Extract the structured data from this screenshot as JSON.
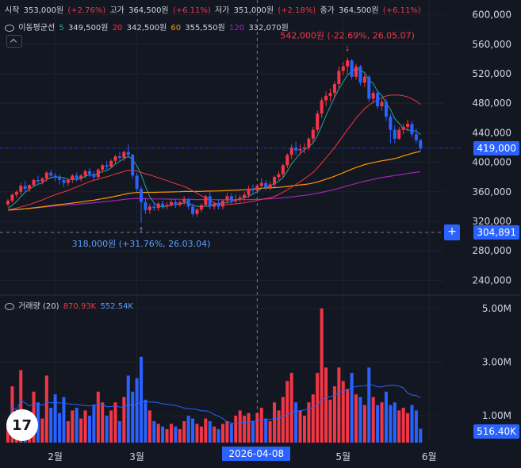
{
  "header": {
    "open_label": "시작",
    "open_value": "353,000원",
    "open_change": "(+2.76%)",
    "high_label": "고가",
    "high_value": "364,500원",
    "high_change": "(+6.11%)",
    "low_label": "저가",
    "low_value": "351,000원",
    "low_change": "(+2.18%)",
    "close_label": "종가",
    "close_value": "364,500원",
    "close_change": "(+6.11%)"
  },
  "ma_legend": {
    "title": "이동평균선",
    "p5": "5",
    "v5": "349,500원",
    "p20": "20",
    "v20": "342,500원",
    "p60": "60",
    "v60": "355,550원",
    "p120": "120",
    "v120": "332,070원"
  },
  "volume_legend": {
    "title": "거래량 (20)",
    "v1": "870.93K",
    "v2": "552.54K"
  },
  "annotations": {
    "high": "542,000원 (-22.69%, 26.05.07)",
    "low": "318,000원 (+31.76%, 26.03.04)"
  },
  "price_axis": {
    "ticks": [
      "600,000",
      "560,000",
      "520,000",
      "480,000",
      "440,000",
      "400,000",
      "360,000",
      "320,000",
      "280,000",
      "240,000"
    ],
    "current_price": "419,000",
    "crosshair_price": "304,891"
  },
  "volume_axis": {
    "ticks": [
      "5.00M",
      "3.00M",
      "1.00M"
    ],
    "current_volume": "516.40K"
  },
  "time_axis": {
    "ticks": [
      "2월",
      "3월",
      "5월",
      "6월"
    ],
    "crosshair_date": "2026-04-08"
  },
  "logo_text": "17",
  "colors": {
    "up": "#f23645",
    "down": "#2962ff",
    "ma5": "#26a69a",
    "ma20": "#f23645",
    "ma60": "#ff9800",
    "ma120": "#9c27b0",
    "vol_ma": "#2962ff",
    "background": "#131722"
  },
  "chart_data": {
    "type": "candlestick",
    "price_range": [
      220000,
      620000
    ],
    "volume_range": [
      0,
      5500000
    ],
    "candles": [
      {
        "o": 343000,
        "h": 350000,
        "c": 348000,
        "l": 340000,
        "v": 600000
      },
      {
        "o": 348000,
        "h": 358000,
        "c": 356000,
        "l": 345000,
        "v": 2100000
      },
      {
        "o": 356000,
        "h": 362000,
        "c": 360000,
        "l": 352000,
        "v": 900000
      },
      {
        "o": 360000,
        "h": 372000,
        "c": 368000,
        "l": 356000,
        "v": 2700000
      },
      {
        "o": 368000,
        "h": 375000,
        "c": 364000,
        "l": 360000,
        "v": 1100000
      },
      {
        "o": 364000,
        "h": 370000,
        "c": 369000,
        "l": 360000,
        "v": 800000
      },
      {
        "o": 369000,
        "h": 378000,
        "c": 376000,
        "l": 366000,
        "v": 1900000
      },
      {
        "o": 376000,
        "h": 382000,
        "c": 374000,
        "l": 370000,
        "v": 1500000
      },
      {
        "o": 374000,
        "h": 380000,
        "c": 378000,
        "l": 370000,
        "v": 900000
      },
      {
        "o": 378000,
        "h": 388000,
        "c": 386000,
        "l": 374000,
        "v": 2500000
      },
      {
        "o": 386000,
        "h": 390000,
        "c": 382000,
        "l": 378000,
        "v": 1300000
      },
      {
        "o": 382000,
        "h": 386000,
        "c": 379000,
        "l": 374000,
        "v": 1800000
      },
      {
        "o": 379000,
        "h": 384000,
        "c": 376000,
        "l": 370000,
        "v": 1100000
      },
      {
        "o": 376000,
        "h": 380000,
        "c": 372000,
        "l": 366000,
        "v": 1700000
      },
      {
        "o": 372000,
        "h": 378000,
        "c": 376000,
        "l": 368000,
        "v": 800000
      },
      {
        "o": 376000,
        "h": 384000,
        "c": 382000,
        "l": 372000,
        "v": 1200000
      },
      {
        "o": 382000,
        "h": 386000,
        "c": 378000,
        "l": 374000,
        "v": 1300000
      },
      {
        "o": 378000,
        "h": 384000,
        "c": 382000,
        "l": 374000,
        "v": 900000
      },
      {
        "o": 382000,
        "h": 390000,
        "c": 388000,
        "l": 378000,
        "v": 1200000
      },
      {
        "o": 388000,
        "h": 392000,
        "c": 384000,
        "l": 380000,
        "v": 1000000
      },
      {
        "o": 384000,
        "h": 388000,
        "c": 380000,
        "l": 376000,
        "v": 1400000
      },
      {
        "o": 380000,
        "h": 392000,
        "c": 390000,
        "l": 376000,
        "v": 1900000
      },
      {
        "o": 390000,
        "h": 398000,
        "c": 396000,
        "l": 386000,
        "v": 1500000
      },
      {
        "o": 396000,
        "h": 402000,
        "c": 394000,
        "l": 390000,
        "v": 1000000
      },
      {
        "o": 394000,
        "h": 404000,
        "c": 402000,
        "l": 392000,
        "v": 1200000
      },
      {
        "o": 402000,
        "h": 410000,
        "c": 408000,
        "l": 398000,
        "v": 1500000
      },
      {
        "o": 408000,
        "h": 414000,
        "c": 406000,
        "l": 402000,
        "v": 800000
      },
      {
        "o": 406000,
        "h": 416000,
        "c": 414000,
        "l": 402000,
        "v": 1700000
      },
      {
        "o": 414000,
        "h": 424000,
        "c": 410000,
        "l": 406000,
        "v": 2500000
      },
      {
        "o": 410000,
        "h": 412000,
        "c": 382000,
        "l": 378000,
        "v": 1900000
      },
      {
        "o": 382000,
        "h": 386000,
        "c": 364000,
        "l": 360000,
        "v": 2400000
      },
      {
        "o": 364000,
        "h": 368000,
        "c": 346000,
        "l": 318000,
        "v": 3200000
      },
      {
        "o": 346000,
        "h": 352000,
        "c": 335000,
        "l": 330000,
        "v": 1600000
      },
      {
        "o": 335000,
        "h": 344000,
        "c": 340000,
        "l": 330000,
        "v": 1200000
      },
      {
        "o": 340000,
        "h": 346000,
        "c": 338000,
        "l": 334000,
        "v": 800000
      },
      {
        "o": 338000,
        "h": 346000,
        "c": 344000,
        "l": 334000,
        "v": 700000
      },
      {
        "o": 344000,
        "h": 348000,
        "c": 340000,
        "l": 336000,
        "v": 600000
      },
      {
        "o": 340000,
        "h": 346000,
        "c": 342000,
        "l": 336000,
        "v": 500000
      },
      {
        "o": 342000,
        "h": 350000,
        "c": 346000,
        "l": 340000,
        "v": 700000
      },
      {
        "o": 346000,
        "h": 350000,
        "c": 342000,
        "l": 338000,
        "v": 600000
      },
      {
        "o": 342000,
        "h": 348000,
        "c": 346000,
        "l": 340000,
        "v": 500000
      },
      {
        "o": 346000,
        "h": 354000,
        "c": 350000,
        "l": 342000,
        "v": 800000
      },
      {
        "o": 350000,
        "h": 352000,
        "c": 340000,
        "l": 336000,
        "v": 1000000
      },
      {
        "o": 340000,
        "h": 344000,
        "c": 330000,
        "l": 326000,
        "v": 900000
      },
      {
        "o": 330000,
        "h": 338000,
        "c": 336000,
        "l": 326000,
        "v": 700000
      },
      {
        "o": 336000,
        "h": 344000,
        "c": 342000,
        "l": 332000,
        "v": 600000
      },
      {
        "o": 342000,
        "h": 356000,
        "c": 354000,
        "l": 340000,
        "v": 900000
      },
      {
        "o": 354000,
        "h": 360000,
        "c": 340000,
        "l": 336000,
        "v": 800000
      },
      {
        "o": 340000,
        "h": 346000,
        "c": 344000,
        "l": 336000,
        "v": 600000
      },
      {
        "o": 344000,
        "h": 350000,
        "c": 340000,
        "l": 336000,
        "v": 500000
      },
      {
        "o": 340000,
        "h": 350000,
        "c": 348000,
        "l": 336000,
        "v": 700000
      },
      {
        "o": 348000,
        "h": 358000,
        "c": 354000,
        "l": 344000,
        "v": 800000
      },
      {
        "o": 354000,
        "h": 358000,
        "c": 348000,
        "l": 342000,
        "v": 700000
      },
      {
        "o": 348000,
        "h": 356000,
        "c": 350000,
        "l": 344000,
        "v": 1000000
      },
      {
        "o": 350000,
        "h": 356000,
        "c": 352000,
        "l": 346000,
        "v": 1200000
      },
      {
        "o": 352000,
        "h": 360000,
        "c": 356000,
        "l": 348000,
        "v": 1000000
      },
      {
        "o": 356000,
        "h": 368000,
        "c": 364000,
        "l": 352000,
        "v": 1100000
      },
      {
        "o": 364000,
        "h": 370000,
        "c": 362000,
        "l": 356000,
        "v": 800000
      },
      {
        "o": 362000,
        "h": 370000,
        "c": 368000,
        "l": 358000,
        "v": 1100000
      },
      {
        "o": 368000,
        "h": 378000,
        "c": 372000,
        "l": 364000,
        "v": 1300000
      },
      {
        "o": 372000,
        "h": 376000,
        "c": 366000,
        "l": 362000,
        "v": 900000
      },
      {
        "o": 366000,
        "h": 374000,
        "c": 370000,
        "l": 362000,
        "v": 800000
      },
      {
        "o": 370000,
        "h": 382000,
        "c": 380000,
        "l": 366000,
        "v": 1500000
      },
      {
        "o": 380000,
        "h": 388000,
        "c": 384000,
        "l": 376000,
        "v": 1200000
      },
      {
        "o": 384000,
        "h": 398000,
        "c": 396000,
        "l": 380000,
        "v": 1700000
      },
      {
        "o": 396000,
        "h": 412000,
        "c": 410000,
        "l": 392000,
        "v": 2300000
      },
      {
        "o": 410000,
        "h": 424000,
        "c": 420000,
        "l": 404000,
        "v": 2600000
      },
      {
        "o": 420000,
        "h": 428000,
        "c": 416000,
        "l": 410000,
        "v": 1500000
      },
      {
        "o": 416000,
        "h": 424000,
        "c": 418000,
        "l": 410000,
        "v": 1200000
      },
      {
        "o": 418000,
        "h": 426000,
        "c": 420000,
        "l": 412000,
        "v": 1000000
      },
      {
        "o": 420000,
        "h": 434000,
        "c": 432000,
        "l": 416000,
        "v": 1500000
      },
      {
        "o": 432000,
        "h": 448000,
        "c": 444000,
        "l": 426000,
        "v": 1800000
      },
      {
        "o": 444000,
        "h": 470000,
        "c": 466000,
        "l": 440000,
        "v": 2600000
      },
      {
        "o": 466000,
        "h": 488000,
        "c": 484000,
        "l": 460000,
        "v": 5000000
      },
      {
        "o": 484000,
        "h": 496000,
        "c": 490000,
        "l": 476000,
        "v": 2800000
      },
      {
        "o": 490000,
        "h": 500000,
        "c": 494000,
        "l": 482000,
        "v": 1600000
      },
      {
        "o": 494000,
        "h": 510000,
        "c": 506000,
        "l": 488000,
        "v": 2100000
      },
      {
        "o": 506000,
        "h": 530000,
        "c": 524000,
        "l": 500000,
        "v": 2800000
      },
      {
        "o": 524000,
        "h": 536000,
        "c": 530000,
        "l": 518000,
        "v": 2300000
      },
      {
        "o": 530000,
        "h": 542000,
        "c": 538000,
        "l": 520000,
        "v": 2000000
      },
      {
        "o": 538000,
        "h": 540000,
        "c": 516000,
        "l": 512000,
        "v": 2600000
      },
      {
        "o": 516000,
        "h": 534000,
        "c": 530000,
        "l": 512000,
        "v": 1800000
      },
      {
        "o": 530000,
        "h": 532000,
        "c": 508000,
        "l": 504000,
        "v": 1700000
      },
      {
        "o": 508000,
        "h": 520000,
        "c": 516000,
        "l": 502000,
        "v": 1400000
      },
      {
        "o": 516000,
        "h": 518000,
        "c": 486000,
        "l": 482000,
        "v": 2800000
      },
      {
        "o": 486000,
        "h": 498000,
        "c": 494000,
        "l": 480000,
        "v": 1700000
      },
      {
        "o": 494000,
        "h": 498000,
        "c": 476000,
        "l": 472000,
        "v": 1400000
      },
      {
        "o": 476000,
        "h": 486000,
        "c": 482000,
        "l": 470000,
        "v": 1500000
      },
      {
        "o": 482000,
        "h": 486000,
        "c": 462000,
        "l": 456000,
        "v": 1900000
      },
      {
        "o": 462000,
        "h": 466000,
        "c": 444000,
        "l": 426000,
        "v": 1400000
      },
      {
        "o": 444000,
        "h": 450000,
        "c": 432000,
        "l": 426000,
        "v": 1500000
      },
      {
        "o": 432000,
        "h": 448000,
        "c": 444000,
        "l": 430000,
        "v": 1200000
      },
      {
        "o": 444000,
        "h": 452000,
        "c": 448000,
        "l": 438000,
        "v": 1300000
      },
      {
        "o": 448000,
        "h": 458000,
        "c": 452000,
        "l": 442000,
        "v": 1100000
      },
      {
        "o": 452000,
        "h": 456000,
        "c": 438000,
        "l": 434000,
        "v": 1400000
      },
      {
        "o": 438000,
        "h": 446000,
        "c": 430000,
        "l": 426000,
        "v": 1200000
      },
      {
        "o": 430000,
        "h": 432000,
        "c": 419000,
        "l": 416000,
        "v": 516400
      }
    ],
    "ma_periods": [
      5,
      20,
      60,
      120
    ],
    "volume_ma_period": 20
  }
}
